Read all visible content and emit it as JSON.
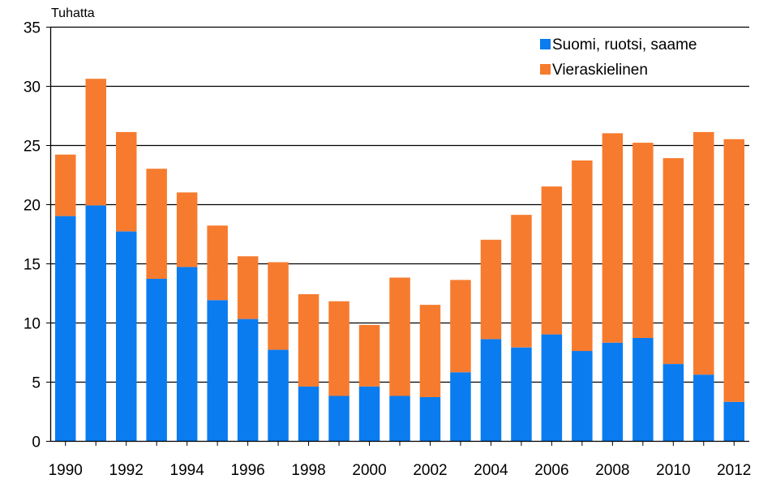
{
  "chart_data": {
    "type": "bar",
    "stacked": true,
    "ylabel": "Tuhatta",
    "ylim": [
      0,
      35
    ],
    "yticks": [
      0,
      5,
      10,
      15,
      20,
      25,
      30,
      35
    ],
    "grid": true,
    "legend_position": "top-right",
    "categories": [
      "1990",
      "1991",
      "1992",
      "1993",
      "1994",
      "1995",
      "1996",
      "1997",
      "1998",
      "1999",
      "2000",
      "2001",
      "2002",
      "2003",
      "2004",
      "2005",
      "2006",
      "2007",
      "2008",
      "2009",
      "2010",
      "2011",
      "2012"
    ],
    "x_tick_labels": [
      "1990",
      "1992",
      "1994",
      "1996",
      "1998",
      "2000",
      "2002",
      "2004",
      "2006",
      "2008",
      "2010",
      "2012"
    ],
    "series": [
      {
        "name": "Suomi, ruotsi, saame",
        "color": "#0a7cf0",
        "values": [
          19.0,
          19.9,
          17.7,
          13.7,
          14.7,
          11.9,
          10.3,
          7.7,
          4.6,
          3.8,
          4.6,
          3.8,
          3.7,
          5.8,
          8.6,
          7.9,
          9.0,
          7.6,
          8.3,
          8.7,
          6.5,
          5.6,
          3.3
        ]
      },
      {
        "name": "Vieraskielinen",
        "color": "#f77b2e",
        "values": [
          5.2,
          10.7,
          8.4,
          9.3,
          6.3,
          6.3,
          5.3,
          7.4,
          7.8,
          8.0,
          5.2,
          10.0,
          7.8,
          7.8,
          8.4,
          11.2,
          12.5,
          16.1,
          17.7,
          16.5,
          17.4,
          20.5,
          22.2
        ]
      }
    ]
  }
}
